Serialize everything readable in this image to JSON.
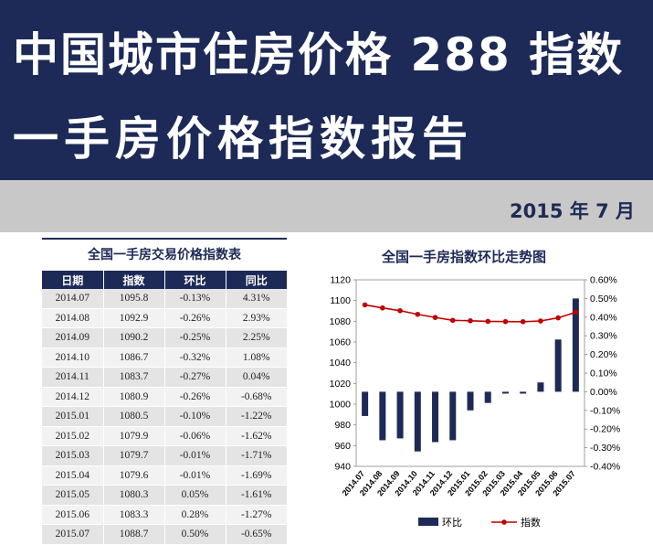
{
  "banner": {
    "title_line1": "中国城市住房价格 288 指数",
    "title_line2": "一手房价格指数报告"
  },
  "report_date": "2015 年 7 月",
  "table": {
    "title": "全国一手房交易价格指数表",
    "headers": [
      "日期",
      "指数",
      "环比",
      "同比"
    ],
    "rows": [
      [
        "2014.07",
        "1095.8",
        "-0.13%",
        "4.31%"
      ],
      [
        "2014.08",
        "1092.9",
        "-0.26%",
        "2.93%"
      ],
      [
        "2014.09",
        "1090.2",
        "-0.25%",
        "2.25%"
      ],
      [
        "2014.10",
        "1086.7",
        "-0.32%",
        "1.08%"
      ],
      [
        "2014.11",
        "1083.7",
        "-0.27%",
        "0.04%"
      ],
      [
        "2014.12",
        "1080.9",
        "-0.26%",
        "-0.68%"
      ],
      [
        "2015.01",
        "1080.5",
        "-0.10%",
        "-1.22%"
      ],
      [
        "2015.02",
        "1079.9",
        "-0.06%",
        "-1.62%"
      ],
      [
        "2015.03",
        "1079.7",
        "-0.01%",
        "-1.71%"
      ],
      [
        "2015.04",
        "1079.6",
        "-0.01%",
        "-1.69%"
      ],
      [
        "2015.05",
        "1080.3",
        "0.05%",
        "-1.61%"
      ],
      [
        "2015.06",
        "1083.3",
        "0.28%",
        "-1.27%"
      ],
      [
        "2015.07",
        "1088.7",
        "0.50%",
        "-0.65%"
      ]
    ]
  },
  "chart_data": {
    "type": "bar",
    "title": "全国一手房指数环比走势图",
    "categories": [
      "2014.07",
      "2014.08",
      "2014.09",
      "2014.10",
      "2014.11",
      "2014.12",
      "2015.01",
      "2015.02",
      "2015.03",
      "2015.04",
      "2015.05",
      "2015.06",
      "2015.07"
    ],
    "series": [
      {
        "name": "环比",
        "kind": "bar",
        "axis": "right",
        "color": "#1d2a57",
        "values": [
          -0.13,
          -0.26,
          -0.25,
          -0.32,
          -0.27,
          -0.26,
          -0.1,
          -0.06,
          -0.01,
          -0.01,
          0.05,
          0.28,
          0.5
        ]
      },
      {
        "name": "指数",
        "kind": "line",
        "axis": "left",
        "color": "#c00000",
        "values": [
          1095.8,
          1092.9,
          1090.2,
          1086.7,
          1083.7,
          1080.9,
          1080.5,
          1079.9,
          1079.7,
          1079.6,
          1080.3,
          1083.3,
          1088.7
        ]
      }
    ],
    "left_axis": {
      "min": 940,
      "max": 1120,
      "step": 20,
      "tick_labels": [
        "940",
        "960",
        "980",
        "1000",
        "1020",
        "1040",
        "1060",
        "1080",
        "1100",
        "1120"
      ]
    },
    "right_axis": {
      "min": -0.4,
      "max": 0.6,
      "step": 0.1,
      "tick_labels": [
        "-0.40%",
        "-0.30%",
        "-0.20%",
        "-0.10%",
        "0.00%",
        "0.10%",
        "0.20%",
        "0.30%",
        "0.40%",
        "0.50%",
        "0.60%"
      ]
    },
    "grid": false,
    "legend_position": "bottom"
  }
}
